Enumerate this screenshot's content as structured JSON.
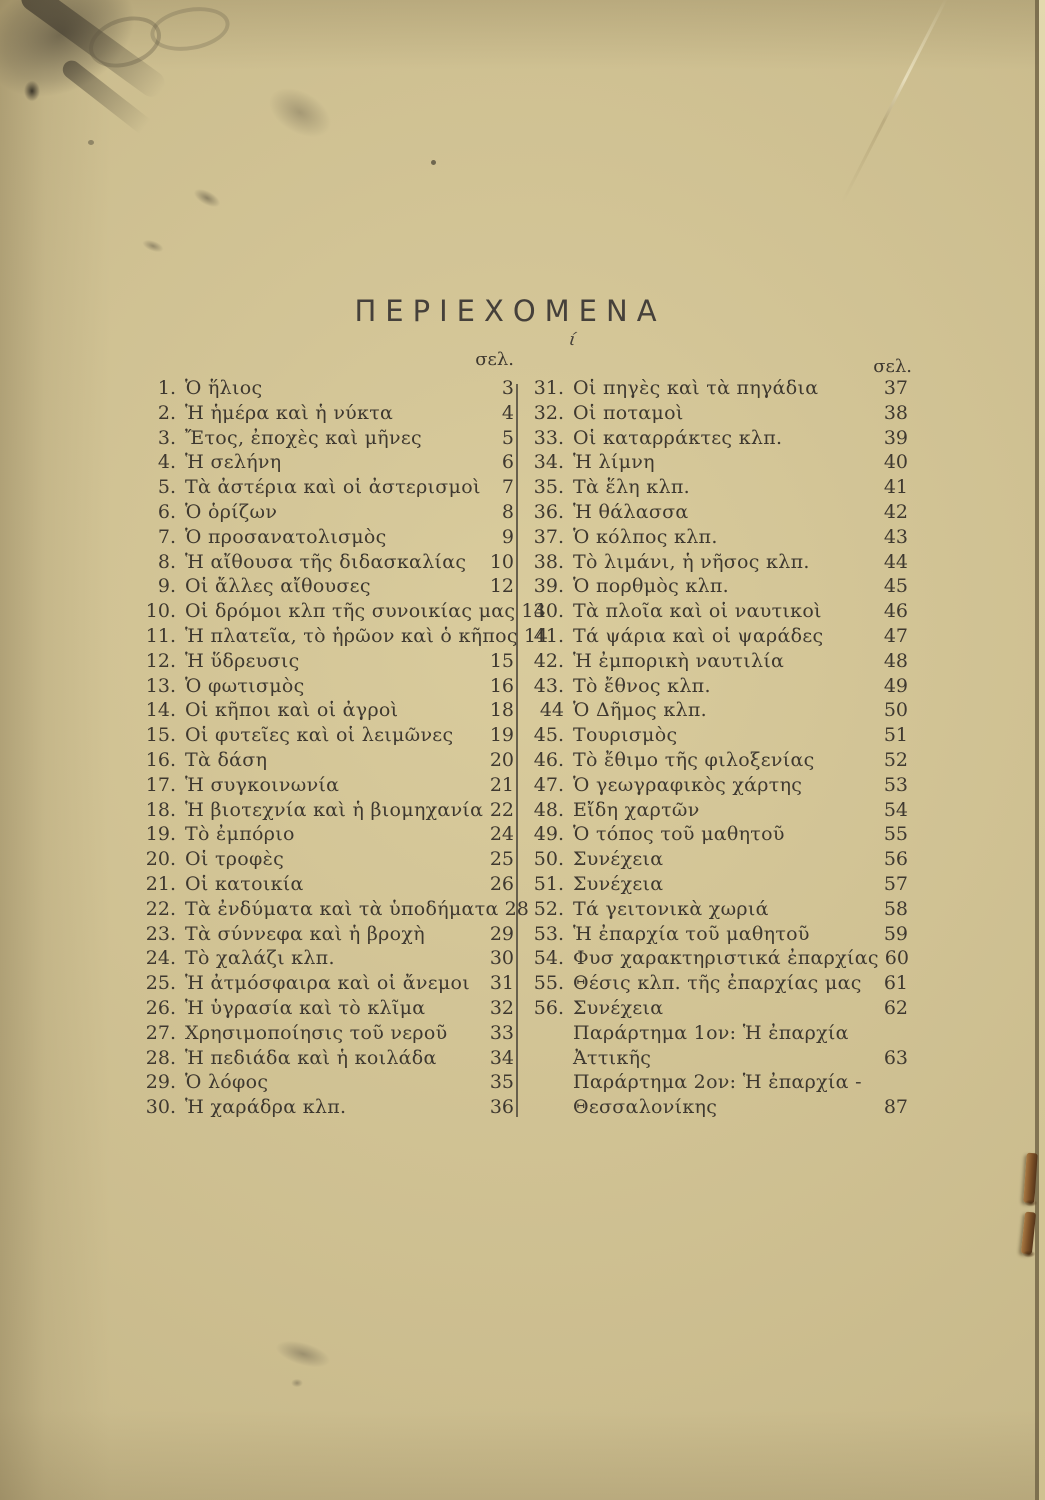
{
  "document": {
    "title": "ΠΕΡΙΕΧΟΜΕΝΑ",
    "title_mark": "ί",
    "page_label_left": "σελ.",
    "page_label_right": "σελ."
  },
  "toc": {
    "left": [
      {
        "n": "1.",
        "t": "Ὁ ἥλιος",
        "p": "3"
      },
      {
        "n": "2.",
        "t": "Ἡ ἡμέρα καὶ ἡ νύκτα",
        "p": "4"
      },
      {
        "n": "3.",
        "t": "Ἔτος, ἐποχὲς καὶ μῆνες",
        "p": "5"
      },
      {
        "n": "4.",
        "t": "Ἡ σελήνη",
        "p": "6"
      },
      {
        "n": "5.",
        "t": "Τὰ ἀστέρια καὶ οἱ ἀστερισμοὶ",
        "p": "7"
      },
      {
        "n": "6.",
        "t": "Ὁ ὁρίζων",
        "p": "8"
      },
      {
        "n": "7.",
        "t": "Ὁ προσανατολισμὸς",
        "p": "9"
      },
      {
        "n": "8.",
        "t": "Ἡ αἴθουσα τῆς διδασκαλίας",
        "p": "10"
      },
      {
        "n": "9.",
        "t": "Οἱ ἄλλες αἴθουσες",
        "p": "12"
      },
      {
        "n": "10.",
        "t": "Οἱ δρόμοι κλπ τῆς συνοικίας μας",
        "p": "13"
      },
      {
        "n": "11.",
        "t": "Ἡ πλατεῖα, τὸ ἡρῶον καὶ ὁ κῆπος",
        "p": "14"
      },
      {
        "n": "12.",
        "t": "Ἡ ὕδρευσις",
        "p": "15"
      },
      {
        "n": "13.",
        "t": "Ὁ φωτισμὸς",
        "p": "16"
      },
      {
        "n": "14.",
        "t": "Οἱ κῆποι καὶ οἱ ἀγροὶ",
        "p": "18"
      },
      {
        "n": "15.",
        "t": "Οἱ φυτεῖες καὶ οἱ λειμῶνες",
        "p": "19"
      },
      {
        "n": "16.",
        "t": "Τὰ δάση",
        "p": "20"
      },
      {
        "n": "17.",
        "t": "Ἡ συγκοινωνία",
        "p": "21"
      },
      {
        "n": "18.",
        "t": "Ἡ βιοτεχνία καὶ ἡ βιομηχανία",
        "p": "22"
      },
      {
        "n": "19.",
        "t": "Τὸ ἐμπόριο",
        "p": "24"
      },
      {
        "n": "20.",
        "t": "Οἱ τροφὲς",
        "p": "25"
      },
      {
        "n": "21.",
        "t": "Οἱ κατοικία",
        "p": "26"
      },
      {
        "n": "22.",
        "t": "Τὰ ἐνδύματα καὶ τὰ ὑποδήματα",
        "p": "28"
      },
      {
        "n": "23.",
        "t": "Τὰ σύννεφα καὶ ἡ βροχὴ",
        "p": "29"
      },
      {
        "n": "24.",
        "t": "Τὸ χαλάζι κλπ.",
        "p": "30"
      },
      {
        "n": "25.",
        "t": "Ἡ ἀτμόσφαιρα καὶ οἱ ἄνεμοι",
        "p": "31"
      },
      {
        "n": "26.",
        "t": "Ἡ ὑγρασία καὶ τὸ κλῖμα",
        "p": "32"
      },
      {
        "n": "27.",
        "t": "Χρησιμοποίησις τοῦ νεροῦ",
        "p": "33"
      },
      {
        "n": "28.",
        "t": "Ἡ πεδιάδα καὶ ἡ κοιλάδα",
        "p": "34"
      },
      {
        "n": "29.",
        "t": "Ὁ λόφος",
        "p": "35"
      },
      {
        "n": "30.",
        "t": "Ἡ χαράδρα κλπ.",
        "p": "36"
      }
    ],
    "right": [
      {
        "n": "31.",
        "t": "Οἱ πηγὲς καὶ τὰ πηγάδια",
        "p": "37"
      },
      {
        "n": "32.",
        "t": "Οἱ ποταμοὶ",
        "p": "38"
      },
      {
        "n": "33.",
        "t": "Οἱ καταρράκτες κλπ.",
        "p": "39"
      },
      {
        "n": "34.",
        "t": "Ἡ λίμνη",
        "p": "40"
      },
      {
        "n": "35.",
        "t": "Τὰ ἕλη κλπ.",
        "p": "41"
      },
      {
        "n": "36.",
        "t": "Ἡ θάλασσα",
        "p": "42"
      },
      {
        "n": "37.",
        "t": "Ὁ κόλπος κλπ.",
        "p": "43"
      },
      {
        "n": "38.",
        "t": "Τὸ λιμάνι, ἡ νῆσος κλπ.",
        "p": "44"
      },
      {
        "n": "39.",
        "t": "Ὁ πορθμὸς κλπ.",
        "p": "45"
      },
      {
        "n": "40.",
        "t": "Τὰ πλοῖα καὶ οἱ ναυτικοὶ",
        "p": "46"
      },
      {
        "n": "41.",
        "t": "Τά ψάρια καὶ οἱ ψαράδες",
        "p": "47"
      },
      {
        "n": "42.",
        "t": "Ἡ ἐμπορικὴ ναυτιλία",
        "p": "48"
      },
      {
        "n": "43.",
        "t": "Τὸ ἔθνος κλπ.",
        "p": "49"
      },
      {
        "n": "44",
        "t": "Ὁ Δῆμος κλπ.",
        "p": "50"
      },
      {
        "n": "45.",
        "t": "Τουρισμὸς",
        "p": "51"
      },
      {
        "n": "46.",
        "t": "Τὸ ἔθιμο τῆς φιλοξενίας",
        "p": "52"
      },
      {
        "n": "47.",
        "t": "Ὁ γεωγραφικὸς χάρτης",
        "p": "53"
      },
      {
        "n": "48.",
        "t": "Εἴδη χαρτῶν",
        "p": "54"
      },
      {
        "n": "49.",
        "t": "Ὁ τόπος τοῦ μαθητοῦ",
        "p": "55"
      },
      {
        "n": "50.",
        "t": "Συνέχεια",
        "p": "56"
      },
      {
        "n": "51.",
        "t": "Συνέχεια",
        "p": "57"
      },
      {
        "n": "52.",
        "t": "Τά γειτονικὰ χωριά",
        "p": "58"
      },
      {
        "n": "53.",
        "t": "Ἡ ἐπαρχία τοῦ μαθητοῦ",
        "p": "59"
      },
      {
        "n": "54.",
        "t": "Φυσ  χαρακτηριστικά ἐπαρχίας",
        "p": "60"
      },
      {
        "n": "55.",
        "t": "Θέσις κλπ. τῆς ἐπαρχίας μας",
        "p": "61"
      },
      {
        "n": "56.",
        "t": "Συνέχεια",
        "p": "62"
      },
      {
        "n": "",
        "t": "Παράρτημα 1ον: Ἡ ἐπαρχία",
        "p": ""
      },
      {
        "n": "",
        "t": "Ἀττικῆς",
        "p": "63"
      },
      {
        "n": "",
        "t": "Παράρτημα 2ον: Ἡ ἐπαρχία -",
        "p": ""
      },
      {
        "n": "",
        "t": "Θεσσαλονίκης",
        "p": "87"
      }
    ]
  },
  "colors": {
    "paper": "#d2c392",
    "ink": "#3e382f",
    "divider": "#554d40",
    "staple": "#8a5a2e",
    "page-edge": "#d9cda0",
    "edge-line": "#6f6143"
  }
}
